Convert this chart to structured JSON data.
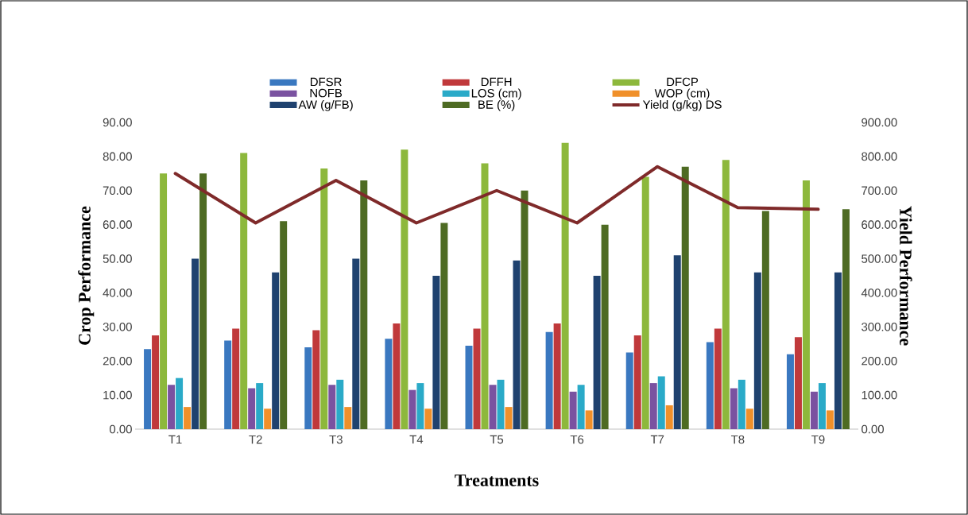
{
  "chart_data": {
    "type": "bar",
    "xlabel": "Treatments",
    "ylabel": "Crop Performance",
    "y2label": "Yield Performance",
    "categories": [
      "T1",
      "T2",
      "T3",
      "T4",
      "T5",
      "T6",
      "T7",
      "T8",
      "T9"
    ],
    "series": [
      {
        "name": "DFSR",
        "color": "#3a78c0",
        "values": [
          23.5,
          26,
          24,
          26.5,
          24.5,
          28.5,
          22.5,
          25.5,
          22
        ]
      },
      {
        "name": "DFFH",
        "color": "#c0393b",
        "values": [
          27.5,
          29.5,
          29,
          31,
          29.5,
          31,
          27.5,
          29.5,
          27
        ]
      },
      {
        "name": "DFCP",
        "color": "#8db83c",
        "values": [
          75,
          81,
          76.5,
          82,
          78,
          84,
          74,
          79,
          73
        ]
      },
      {
        "name": "NOFB",
        "color": "#7a52a0",
        "values": [
          13,
          12,
          13,
          11.5,
          13,
          11,
          13.5,
          12,
          11
        ]
      },
      {
        "name": "LOS (cm)",
        "color": "#2aaac8",
        "values": [
          15,
          13.5,
          14.5,
          13.5,
          14.5,
          13,
          15.5,
          14.5,
          13.5
        ]
      },
      {
        "name": "WOP (cm)",
        "color": "#f0902a",
        "values": [
          6.5,
          6,
          6.5,
          6,
          6.5,
          5.5,
          7,
          6,
          5.5
        ]
      },
      {
        "name": "AW (g/FB)",
        "color": "#1f426f",
        "values": [
          50,
          46,
          50,
          45,
          49.5,
          45,
          51,
          46,
          46
        ]
      },
      {
        "name": "BE (%)",
        "color": "#4e6b23",
        "values": [
          75,
          61,
          73,
          60.5,
          70,
          60,
          77,
          64,
          64.5
        ]
      },
      {
        "name": "Yield (g/kg) DS",
        "type": "line",
        "axis": "y2",
        "color": "#7f2a2a",
        "values": [
          750,
          605,
          730,
          605,
          700,
          605,
          770,
          650,
          645
        ]
      }
    ],
    "ylim": [
      0,
      90
    ],
    "yticks": [
      {
        "value": 0,
        "label": "0.00"
      },
      {
        "value": 10,
        "label": "10.00"
      },
      {
        "value": 20,
        "label": "20.00"
      },
      {
        "value": 30,
        "label": "30.00"
      },
      {
        "value": 40,
        "label": "40.00"
      },
      {
        "value": 50,
        "label": "50.00"
      },
      {
        "value": 60,
        "label": "60.00"
      },
      {
        "value": 70,
        "label": "70.00"
      },
      {
        "value": 80,
        "label": "80.00"
      },
      {
        "value": 90,
        "label": "90.00"
      }
    ],
    "y2lim": [
      0,
      900
    ],
    "y2ticks": [
      {
        "value": 0,
        "label": "0.00"
      },
      {
        "value": 100,
        "label": "100.00"
      },
      {
        "value": 200,
        "label": "200.00"
      },
      {
        "value": 300,
        "label": "300.00"
      },
      {
        "value": 400,
        "label": "400.00"
      },
      {
        "value": 500,
        "label": "500.00"
      },
      {
        "value": 600,
        "label": "600.00"
      },
      {
        "value": 700,
        "label": "700.00"
      },
      {
        "value": 800,
        "label": "800.00"
      },
      {
        "value": 900,
        "label": "900.00"
      }
    ],
    "legend": "top"
  }
}
